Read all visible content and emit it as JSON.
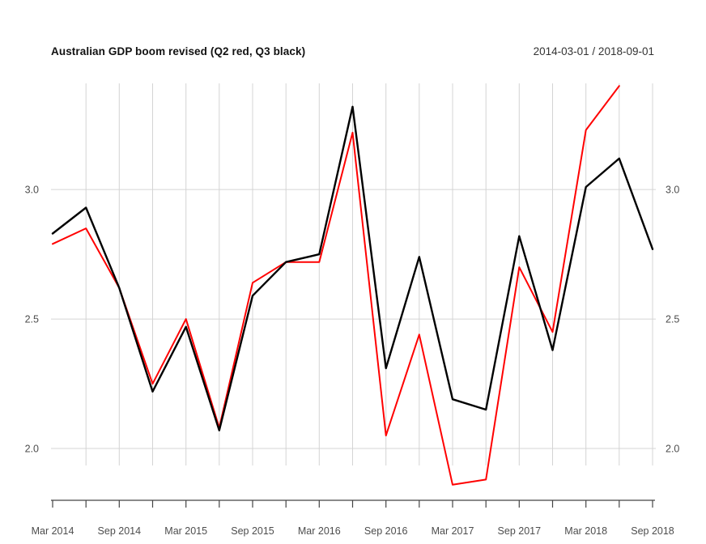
{
  "header": {
    "title": "Australian GDP boom revised (Q2 red, Q3 black)",
    "date_range": "2014-03-01 / 2018-09-01"
  },
  "chart_data": {
    "type": "line",
    "title": "Australian GDP boom revised (Q2 red, Q3 black)",
    "date_range_label": "2014-03-01 / 2018-09-01",
    "xlabel": "",
    "ylabel": "",
    "x_dates": [
      "2014-03-01",
      "2014-06-01",
      "2014-09-01",
      "2014-12-01",
      "2015-03-01",
      "2015-06-01",
      "2015-09-01",
      "2015-12-01",
      "2016-03-01",
      "2016-06-01",
      "2016-09-01",
      "2016-12-01",
      "2017-03-01",
      "2017-06-01",
      "2017-09-01",
      "2017-12-01",
      "2018-03-01",
      "2018-06-01",
      "2018-09-01"
    ],
    "x_tick_labels": [
      {
        "index": 0,
        "label": "Mar 2014"
      },
      {
        "index": 2,
        "label": "Sep 2014"
      },
      {
        "index": 4,
        "label": "Mar 2015"
      },
      {
        "index": 6,
        "label": "Sep 2015"
      },
      {
        "index": 8,
        "label": "Mar 2016"
      },
      {
        "index": 10,
        "label": "Sep 2016"
      },
      {
        "index": 12,
        "label": "Mar 2017"
      },
      {
        "index": 14,
        "label": "Sep 2017"
      },
      {
        "index": 16,
        "label": "Mar 2018"
      },
      {
        "index": 18,
        "label": "Sep 2018"
      }
    ],
    "series": [
      {
        "id": "q2-red",
        "name": "Q2 (red)",
        "color": "#ff0000",
        "line_width": 2,
        "values": [
          2.79,
          2.85,
          2.62,
          2.25,
          2.5,
          2.08,
          2.64,
          2.72,
          2.72,
          3.22,
          2.05,
          2.44,
          1.86,
          1.88,
          2.7,
          2.45,
          3.23,
          3.4,
          null
        ]
      },
      {
        "id": "q3-black",
        "name": "Q3 (black)",
        "color": "#000000",
        "line_width": 2.4,
        "values": [
          2.83,
          2.93,
          2.62,
          2.22,
          2.47,
          2.07,
          2.59,
          2.72,
          2.75,
          3.32,
          2.31,
          2.74,
          2.19,
          2.15,
          2.82,
          2.38,
          3.01,
          3.12,
          2.77
        ]
      }
    ],
    "y_ticks": [
      2.0,
      2.5,
      3.0
    ],
    "ylim": [
      1.8,
      3.41
    ],
    "grid": true,
    "y_labels_both_sides": true,
    "legend_position": "none",
    "colors": {
      "grid": "#d4d4d4",
      "axis": "#444444",
      "tick_labels": "#4d4d4d",
      "background": "#ffffff"
    }
  }
}
